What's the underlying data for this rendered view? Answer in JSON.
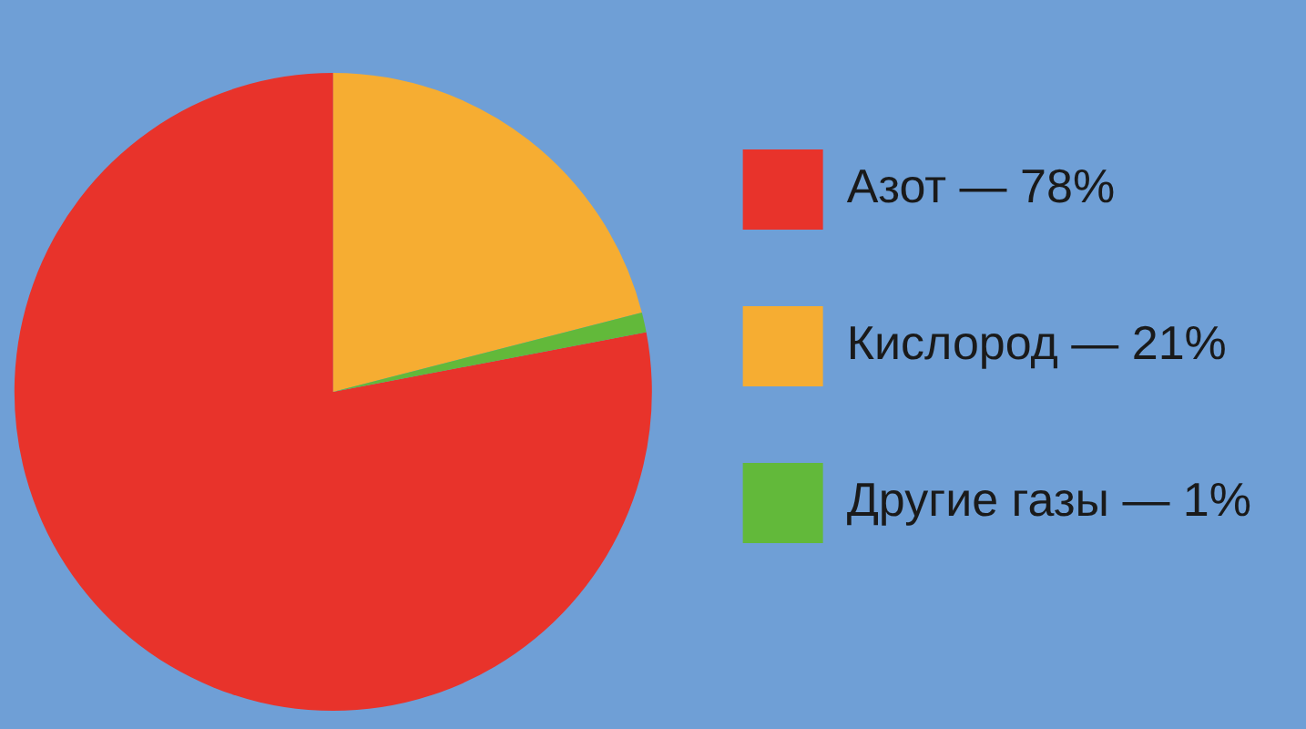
{
  "chart_data": {
    "type": "pie",
    "categories": [
      "Азот — 78%",
      "Кислород — 21%",
      "Другие газы — 1%"
    ],
    "values": [
      78,
      21,
      1
    ],
    "colors": [
      "#e8332b",
      "#f6ad32",
      "#62b93a"
    ],
    "legend": "right"
  }
}
